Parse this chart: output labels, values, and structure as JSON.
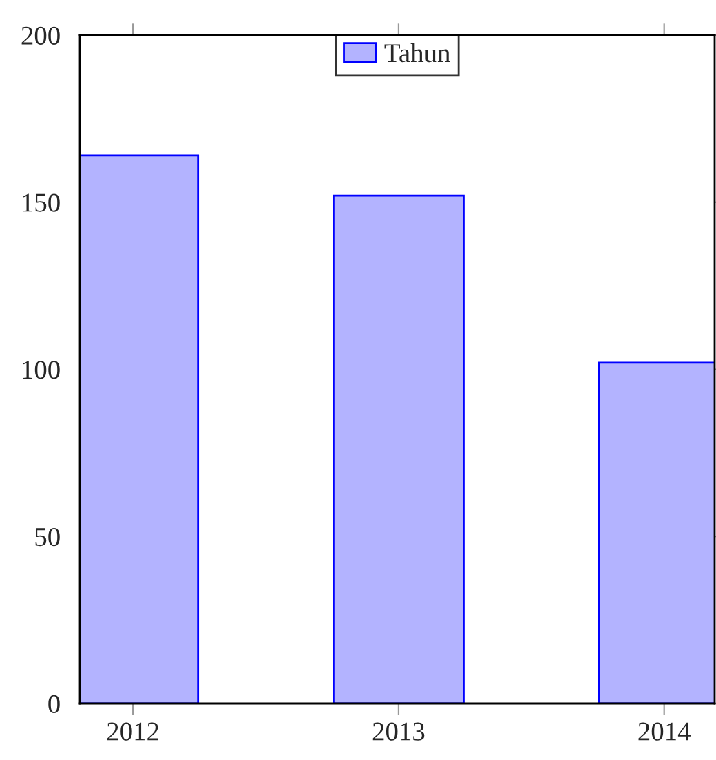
{
  "chart_data": {
    "type": "bar",
    "x": [
      2012,
      2013,
      2014
    ],
    "series": [
      {
        "name": "Tahun",
        "color": "#b3b3ff",
        "values": [
          164,
          152,
          102
        ]
      }
    ],
    "xlim": [
      2011.8,
      2014.19
    ],
    "xticks": [
      2012,
      2013,
      2014
    ],
    "ylim": [
      0,
      200
    ],
    "yticks": [
      0,
      50,
      100,
      150,
      200
    ],
    "legend": "top",
    "grid": false
  }
}
